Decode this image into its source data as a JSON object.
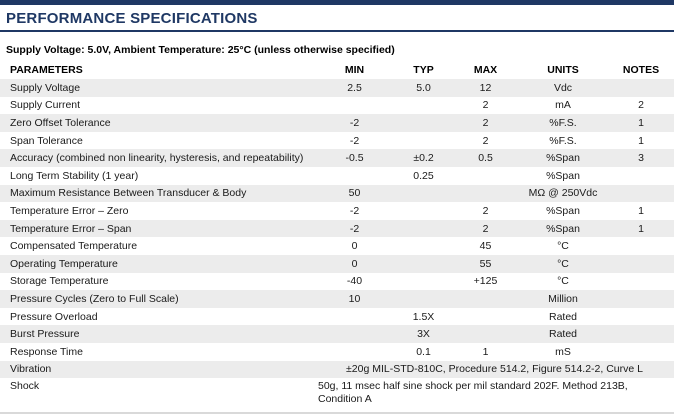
{
  "page": {
    "title": "PERFORMANCE SPECIFICATIONS",
    "subtitle": "Supply Voltage: 5.0V, Ambient Temperature: 25°C (unless otherwise specified)"
  },
  "colors": {
    "accent": "#1f3864",
    "row_alt": "#ececec"
  },
  "table": {
    "columns": [
      "PARAMETERS",
      "MIN",
      "TYP",
      "MAX",
      "UNITS",
      "NOTES"
    ],
    "rows": [
      {
        "parameter": "Supply Voltage",
        "min": "2.5",
        "typ": "5.0",
        "max": "12",
        "units": "Vdc",
        "notes": ""
      },
      {
        "parameter": "Supply Current",
        "min": "",
        "typ": "",
        "max": "2",
        "units": "mA",
        "notes": "2"
      },
      {
        "parameter": "Zero Offset Tolerance",
        "min": "-2",
        "typ": "",
        "max": "2",
        "units": "%F.S.",
        "notes": "1"
      },
      {
        "parameter": "Span Tolerance",
        "min": "-2",
        "typ": "",
        "max": "2",
        "units": "%F.S.",
        "notes": "1"
      },
      {
        "parameter": "Accuracy (combined non linearity, hysteresis, and repeatability)",
        "min": "-0.5",
        "typ": "±0.2",
        "max": "0.5",
        "units": "%Span",
        "notes": "3"
      },
      {
        "parameter": "Long Term Stability (1 year)",
        "min": "",
        "typ": "0.25",
        "max": "",
        "units": "%Span",
        "notes": ""
      },
      {
        "parameter": "Maximum Resistance Between Transducer & Body",
        "min": "50",
        "typ": "",
        "max": "",
        "units": "MΩ @ 250Vdc",
        "notes": ""
      },
      {
        "parameter": "Temperature Error – Zero",
        "min": "-2",
        "typ": "",
        "max": "2",
        "units": "%Span",
        "notes": "1"
      },
      {
        "parameter": "Temperature Error – Span",
        "min": "-2",
        "typ": "",
        "max": "2",
        "units": "%Span",
        "notes": "1"
      },
      {
        "parameter": "Compensated Temperature",
        "min": "0",
        "typ": "",
        "max": "45",
        "units": "°C",
        "notes": ""
      },
      {
        "parameter": "Operating Temperature",
        "min": "0",
        "typ": "",
        "max": "55",
        "units": "°C",
        "notes": ""
      },
      {
        "parameter": "Storage Temperature",
        "min": "-40",
        "typ": "",
        "max": "+125",
        "units": "°C",
        "notes": ""
      },
      {
        "parameter": "Pressure Cycles (Zero to Full Scale)",
        "min": "10",
        "typ": "",
        "max": "",
        "units": "Million",
        "notes": ""
      },
      {
        "parameter": "Pressure Overload",
        "min": "",
        "typ": "1.5X",
        "max": "",
        "units": "Rated",
        "notes": ""
      },
      {
        "parameter": "Burst Pressure",
        "min": "",
        "typ": "3X",
        "max": "",
        "units": "Rated",
        "notes": ""
      },
      {
        "parameter": "Response Time",
        "min": "",
        "typ": "0.1",
        "max": "1",
        "units": "mS",
        "notes": ""
      },
      {
        "parameter": "Vibration",
        "merged": "±20g MIL-STD-810C, Procedure 514.2, Figure 514.2-2, Curve L",
        "align": "center"
      },
      {
        "parameter": "Shock",
        "merged": "50g, 11 msec half sine shock per mil standard 202F. Method 213B,\nCondition A",
        "align": "left",
        "multiline": true
      }
    ]
  }
}
